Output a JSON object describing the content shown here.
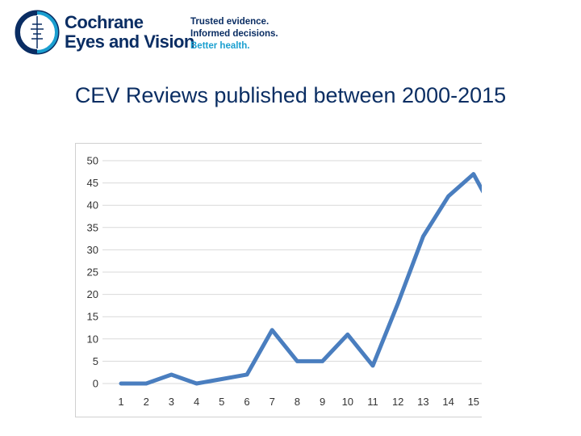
{
  "header": {
    "org_name_line1": "Cochrane",
    "org_name_line2": "Eyes and Vision",
    "tagline": [
      "Trusted evidence.",
      "Informed decisions.",
      "Better health."
    ],
    "logo_icon": "cochrane-logo-icon",
    "brand_color": "#0a2d63",
    "accent_color": "#1a9fd0"
  },
  "slide": {
    "title": "CEV Reviews published between 2000-2015"
  },
  "chart_data": {
    "type": "line",
    "title": "",
    "xlabel": "",
    "ylabel": "",
    "x": [
      1,
      2,
      3,
      4,
      5,
      6,
      7,
      8,
      9,
      10,
      11,
      12,
      13,
      14,
      15
    ],
    "series": [
      {
        "values": [
          0,
          0,
          2,
          0,
          1,
          2,
          12,
          5,
          5,
          11,
          4,
          18,
          33,
          42,
          47
        ],
        "color": "#4a7ebf"
      }
    ],
    "ylim": [
      0,
      50
    ],
    "yticks": [
      0,
      5,
      10,
      15,
      20,
      25,
      30,
      35,
      40,
      45,
      50
    ],
    "grid": true
  }
}
